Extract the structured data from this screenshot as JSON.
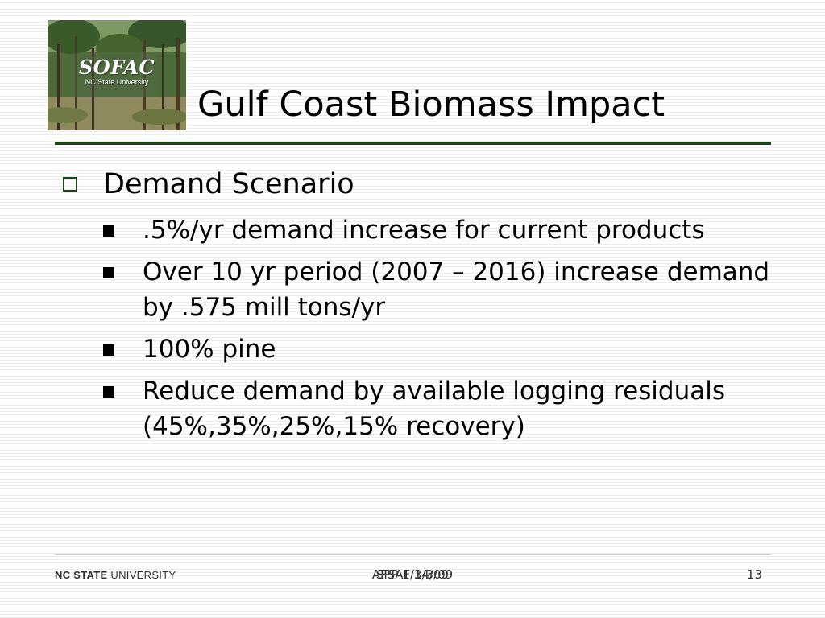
{
  "slide": {
    "logo_title": "SOFAC",
    "logo_subtitle": "NC State University",
    "title": "Gulf Coast Biomass Impact",
    "level1_bullet": "Demand Scenario",
    "bullets": [
      ".5%/yr demand increase for current products",
      "Over 10 yr period (2007 – 2016) increase demand by .575 mill tons/yr",
      "100% pine",
      "Reduce demand by available logging residuals (45%,35%,25%,15% recovery)"
    ]
  },
  "footer": {
    "brand_bold": "NC STATE",
    "brand_rest": "UNIVERSITY",
    "date_a": "AFSAF 3/3/09",
    "date_b": "SPP 1/14/09",
    "page_number": "13"
  },
  "colors": {
    "accent_green": "#1c4419"
  }
}
